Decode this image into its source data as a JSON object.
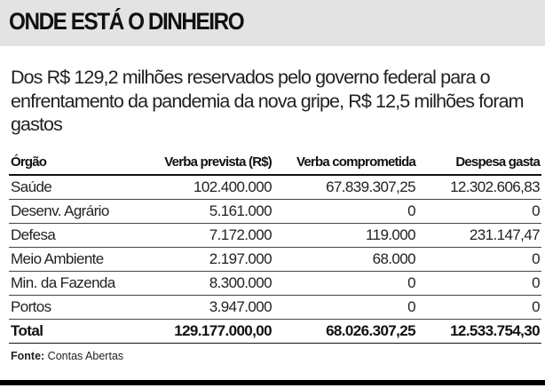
{
  "title": "ONDE ESTÁ O DINHEIRO",
  "subtitle": "Dos R$ 129,2 milhões reservados pelo governo federal para o enfrentamento da pandemia da nova gripe, R$ 12,5 milhões foram gastos",
  "table": {
    "headers": [
      "Órgão",
      "Verba prevista (R$)",
      "Verba comprometida",
      "Despesa gasta"
    ],
    "rows": [
      [
        "Saúde",
        "102.400.000",
        "67.839.307,25",
        "12.302.606,83"
      ],
      [
        "Desenv. Agrário",
        "5.161.000",
        "0",
        "0"
      ],
      [
        "Defesa",
        "7.172.000",
        "119.000",
        "231.147,47"
      ],
      [
        "Meio Ambiente",
        "2.197.000",
        "68.000",
        "0"
      ],
      [
        "Min. da Fazenda",
        "8.300.000",
        "0",
        "0"
      ],
      [
        "Portos",
        "3.947.000",
        "0",
        "0"
      ]
    ],
    "total": [
      "Total",
      "129.177.000,00",
      "68.026.307,25",
      "12.533.754,30"
    ]
  },
  "source": {
    "label": "Fonte:",
    "value": "Contas Abertas"
  }
}
